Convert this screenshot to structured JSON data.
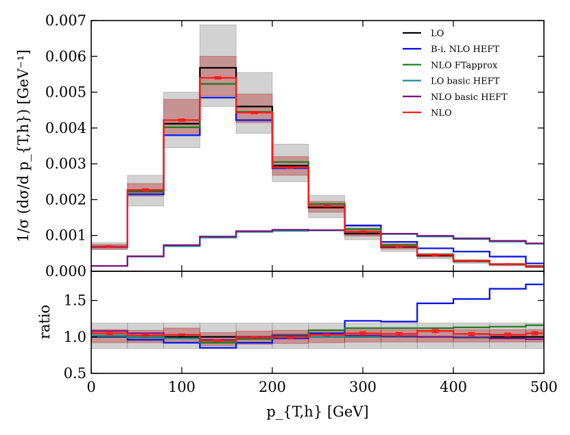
{
  "chart_data": [
    {
      "type": "line",
      "panel": "main",
      "step": true,
      "ylabel": "1/σ (dσ/d p_{T,h}) [GeV⁻¹]",
      "ylim": [
        0,
        0.007
      ],
      "xlim": [
        0,
        500
      ],
      "bin_edges": [
        0,
        40,
        80,
        120,
        160,
        200,
        240,
        280,
        320,
        360,
        400,
        440,
        480,
        500
      ],
      "yticks": [
        "0.000",
        "0.001",
        "0.002",
        "0.003",
        "0.004",
        "0.005",
        "0.006",
        "0.007"
      ],
      "ytick_values": [
        0,
        0.001,
        0.002,
        0.003,
        0.004,
        0.005,
        0.006,
        0.007
      ],
      "legend_position": "top-right",
      "bands": [
        {
          "name": "LO scale band",
          "color": "#7f7f7f",
          "low": [
            0.0006,
            0.00182,
            0.00345,
            0.0046,
            0.00385,
            0.0025,
            0.0015,
            0.00088,
            0.00055,
            0.00035,
            0.00022,
            0.00015,
            0.0001
          ],
          "high": [
            0.0008,
            0.00268,
            0.005,
            0.00688,
            0.00555,
            0.00355,
            0.00212,
            0.00125,
            0.00078,
            0.0005,
            0.00032,
            0.00022,
            0.00015
          ]
        },
        {
          "name": "NLO scale band",
          "color": "#b41e1e",
          "low": [
            0.00062,
            0.0021,
            0.00385,
            0.0049,
            0.00415,
            0.00268,
            0.00165,
            0.00098,
            0.00062,
            0.0004,
            0.00026,
            0.00018,
            0.00012
          ],
          "high": [
            0.00075,
            0.00245,
            0.0048,
            0.006,
            0.00495,
            0.0032,
            0.00195,
            0.00115,
            0.00072,
            0.00047,
            0.0003,
            0.00021,
            0.00014
          ]
        }
      ],
      "series": [
        {
          "name": "LO",
          "color": "#000000",
          "values": [
            0.00068,
            0.00225,
            0.00412,
            0.00568,
            0.0046,
            0.00295,
            0.00178,
            0.00105,
            0.00068,
            0.00044,
            0.00028,
            0.00019,
            0.00013
          ]
        },
        {
          "name": "B-i. NLO HEFT",
          "color": "#0a14e6",
          "values": [
            0.00068,
            0.00215,
            0.0038,
            0.00485,
            0.00422,
            0.00288,
            0.00188,
            0.00128,
            0.00082,
            0.00064,
            0.00055,
            0.00041,
            0.00022
          ]
        },
        {
          "name": "NLO FTapprox",
          "color": "#1e7d1e",
          "values": [
            0.00069,
            0.00222,
            0.00402,
            0.00523,
            0.00445,
            0.00305,
            0.00188,
            0.00118,
            0.00074,
            0.00047,
            0.0003,
            0.0002,
            0.00015
          ]
        },
        {
          "name": "LO basic HEFT",
          "color": "#1e8c8c",
          "values": [
            0.00015,
            0.00041,
            0.0007,
            0.00094,
            0.0011,
            0.00113,
            0.00114,
            0.00109,
            0.00104,
            0.00097,
            0.0009,
            0.00083,
            0.00077
          ]
        },
        {
          "name": "NLO basic HEFT",
          "color": "#7d147d",
          "values": [
            0.00015,
            0.00042,
            0.00073,
            0.00097,
            0.00112,
            0.00116,
            0.00115,
            0.0011,
            0.00105,
            0.00099,
            0.00092,
            0.00085,
            0.00078
          ]
        },
        {
          "name": "NLO",
          "color": "#ff1919",
          "values": [
            0.00069,
            0.00227,
            0.00422,
            0.0054,
            0.00443,
            0.0029,
            0.00182,
            0.0011,
            0.0007,
            0.00046,
            0.00029,
            0.0002,
            0.00014
          ],
          "errors": [
            2e-05,
            3e-05,
            3e-05,
            3e-05,
            3e-05,
            2e-05,
            2e-05,
            2e-05,
            2e-05,
            2e-05,
            1e-05,
            1e-05,
            1e-05
          ]
        }
      ]
    },
    {
      "type": "line",
      "panel": "ratio",
      "step": true,
      "xlabel": "p_{T,h} [GeV]",
      "ylabel": "ratio",
      "ylim": [
        0.5,
        1.9
      ],
      "xlim": [
        0,
        500
      ],
      "bin_edges": [
        0,
        40,
        80,
        120,
        160,
        200,
        240,
        280,
        320,
        360,
        400,
        440,
        480,
        500
      ],
      "yticks": [
        "0.5",
        "1.0",
        "1.5"
      ],
      "ytick_values": [
        0.5,
        1.0,
        1.5
      ],
      "xticks": [
        "0",
        "100",
        "200",
        "300",
        "400",
        "500"
      ],
      "xtick_values": [
        0,
        100,
        200,
        300,
        400,
        500
      ],
      "bands": [
        {
          "name": "LO scale band",
          "color": "#7f7f7f",
          "low": [
            0.84,
            0.84,
            0.84,
            0.84,
            0.84,
            0.84,
            0.84,
            0.84,
            0.84,
            0.84,
            0.84,
            0.84,
            0.84
          ],
          "high": [
            1.19,
            1.19,
            1.19,
            1.19,
            1.19,
            1.19,
            1.19,
            1.19,
            1.19,
            1.19,
            1.19,
            1.19,
            1.19
          ]
        },
        {
          "name": "NLO scale band",
          "color": "#b41e1e",
          "low": [
            0.92,
            0.92,
            0.92,
            0.88,
            0.9,
            0.91,
            0.92,
            0.93,
            0.93,
            0.93,
            0.93,
            0.93,
            0.93
          ],
          "high": [
            1.1,
            1.09,
            1.12,
            1.06,
            1.08,
            1.09,
            1.1,
            1.1,
            1.1,
            1.1,
            1.1,
            1.1,
            1.1
          ]
        }
      ],
      "series": [
        {
          "name": "LO",
          "color": "#000000",
          "values": [
            1.0,
            1.0,
            1.0,
            1.0,
            1.0,
            1.0,
            1.0,
            1.0,
            1.0,
            1.0,
            1.0,
            1.0,
            1.0
          ]
        },
        {
          "name": "B-i. NLO HEFT",
          "color": "#0a14e6",
          "values": [
            1.0,
            0.96,
            0.92,
            0.85,
            0.92,
            0.98,
            1.05,
            1.22,
            1.21,
            1.46,
            1.52,
            1.66,
            1.72
          ]
        },
        {
          "name": "NLO FTapprox",
          "color": "#1e7d1e",
          "values": [
            1.01,
            0.99,
            0.98,
            0.92,
            0.97,
            1.03,
            1.09,
            1.12,
            1.12,
            1.12,
            1.13,
            1.14,
            1.16
          ]
        },
        {
          "name": "LO basic HEFT",
          "color": "#1e8c8c",
          "values": [
            1.02,
            1.0,
            0.98,
            0.94,
            0.99,
            1.0,
            1.0,
            1.0,
            1.0,
            1.0,
            1.0,
            0.98,
            0.97
          ]
        },
        {
          "name": "NLO basic HEFT",
          "color": "#7d147d",
          "values": [
            1.08,
            1.05,
            1.03,
            0.96,
            1.0,
            1.02,
            1.03,
            1.02,
            1.01,
            1.0,
            0.99,
            0.98,
            0.97
          ]
        },
        {
          "name": "NLO",
          "color": "#ff1919",
          "values": [
            1.05,
            1.02,
            1.03,
            0.95,
            0.99,
            0.99,
            1.03,
            1.05,
            1.04,
            1.08,
            1.04,
            1.03,
            1.05
          ],
          "errors": [
            0.02,
            0.01,
            0.01,
            0.01,
            0.01,
            0.01,
            0.01,
            0.02,
            0.02,
            0.02,
            0.02,
            0.02,
            0.02
          ]
        }
      ]
    }
  ]
}
